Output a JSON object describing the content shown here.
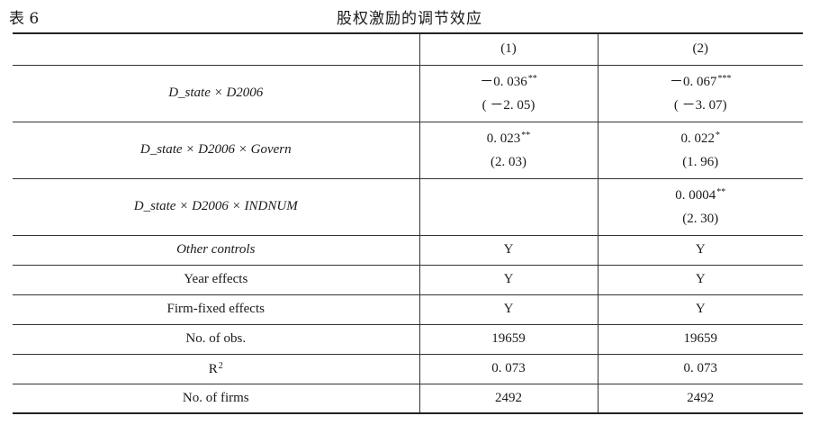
{
  "caption": {
    "label": "表 6",
    "title": "股权激励的调节效应"
  },
  "table": {
    "header": [
      "",
      "(1)",
      "(2)"
    ],
    "rows": [
      {
        "label": "D_state × D2006",
        "label_italic": true,
        "cells": [
          {
            "coef": "－0. 036",
            "stars": "**",
            "t": "( －2. 05)"
          },
          {
            "coef": "－0. 067",
            "stars": "***",
            "t": "( －3. 07)"
          }
        ]
      },
      {
        "label": "D_state × D2006 × Govern",
        "label_italic": true,
        "cells": [
          {
            "coef": "0. 023",
            "stars": "**",
            "t": "(2. 03)"
          },
          {
            "coef": "0. 022",
            "stars": "*",
            "t": "(1. 96)"
          }
        ]
      },
      {
        "label": "D_state × D2006 × INDNUM",
        "label_italic": true,
        "cells": [
          {
            "coef": "",
            "stars": "",
            "t": ""
          },
          {
            "coef": "0. 0004",
            "stars": "**",
            "t": "(2. 30)"
          }
        ]
      },
      {
        "label": "Other controls",
        "label_italic": true,
        "cells": [
          "Y",
          "Y"
        ]
      },
      {
        "label": "Year effects",
        "label_italic": false,
        "cells": [
          "Y",
          "Y"
        ]
      },
      {
        "label": "Firm-fixed effects",
        "label_italic": false,
        "cells": [
          "Y",
          "Y"
        ]
      },
      {
        "label": "No. of obs.",
        "label_italic": false,
        "cells": [
          "19659",
          "19659"
        ]
      },
      {
        "label": "R",
        "label_sup": "2",
        "label_italic": false,
        "cells": [
          "0. 073",
          "0. 073"
        ]
      },
      {
        "label": "No. of firms",
        "label_italic": false,
        "cells": [
          "2492",
          "2492"
        ]
      }
    ]
  }
}
